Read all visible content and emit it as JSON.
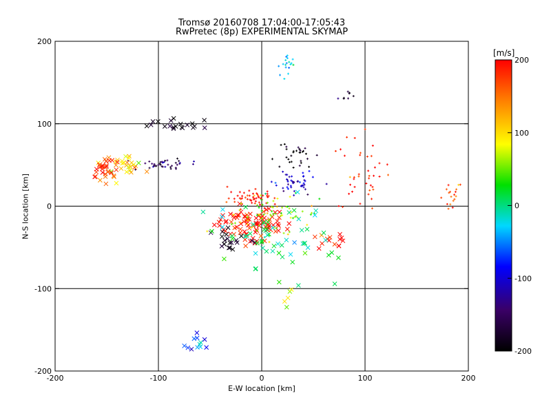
{
  "chart_data": {
    "type": "scatter",
    "title": "Tromsø 20160708 17:04:00-17:05:43",
    "subtitle": "RwPretec (8p) EXPERIMENTAL SKYMAP",
    "xlabel": "E-W location [km]",
    "ylabel": "N-S location [km]",
    "xlim": [
      -200,
      200
    ],
    "ylim": [
      -200,
      200
    ],
    "xticks": [
      "-200",
      "-100",
      "0",
      "100",
      "200"
    ],
    "yticks": [
      "-200",
      "-100",
      "0",
      "100",
      "200"
    ],
    "grid": true,
    "marker_types": [
      "x",
      "+"
    ],
    "colorbar": {
      "label": "[m/s]",
      "range": [
        -200,
        200
      ],
      "ticks": [
        "200",
        "100",
        "0",
        "-100",
        "-200"
      ],
      "colors": [
        "#000000",
        "#3a0066",
        "#0000ff",
        "#00d8ff",
        "#00e000",
        "#ffff00",
        "#ff8000",
        "#ff0000"
      ]
    },
    "clusters": [
      {
        "x": -10,
        "y": -22,
        "spread": [
          18,
          10
        ],
        "velocity": 200,
        "marker": "x",
        "count": 90
      },
      {
        "x": -8,
        "y": 10,
        "spread": [
          12,
          6
        ],
        "velocity": 195,
        "marker": "+",
        "count": 55
      },
      {
        "x": 15,
        "y": -12,
        "spread": [
          20,
          12
        ],
        "velocity": 60,
        "marker": "+",
        "count": 70
      },
      {
        "x": 30,
        "y": 30,
        "spread": [
          10,
          8
        ],
        "velocity": -110,
        "marker": "+",
        "count": 45
      },
      {
        "x": 28,
        "y": 60,
        "spread": [
          12,
          8
        ],
        "velocity": -200,
        "marker": "+",
        "count": 30
      },
      {
        "x": -95,
        "y": 52,
        "spread": [
          12,
          3
        ],
        "velocity": -150,
        "marker": "+",
        "count": 40
      },
      {
        "x": -135,
        "y": 52,
        "spread": [
          10,
          6
        ],
        "velocity": 110,
        "marker": "x",
        "count": 30
      },
      {
        "x": -155,
        "y": 45,
        "spread": [
          7,
          8
        ],
        "velocity": 175,
        "marker": "x",
        "count": 28
      },
      {
        "x": -80,
        "y": 97,
        "spread": [
          15,
          5
        ],
        "velocity": -200,
        "marker": "x",
        "count": 20
      },
      {
        "x": 100,
        "y": 40,
        "spread": [
          18,
          25
        ],
        "velocity": 190,
        "marker": "+",
        "count": 40
      },
      {
        "x": 22,
        "y": 172,
        "spread": [
          5,
          6
        ],
        "velocity": -30,
        "marker": "+",
        "count": 18
      },
      {
        "x": -60,
        "y": -160,
        "spread": [
          6,
          8
        ],
        "velocity": -70,
        "marker": "x",
        "count": 12
      },
      {
        "x": 67,
        "y": -40,
        "spread": [
          8,
          6
        ],
        "velocity": 200,
        "marker": "x",
        "count": 14
      },
      {
        "x": -30,
        "y": -45,
        "spread": [
          10,
          8
        ],
        "velocity": -200,
        "marker": "x",
        "count": 20
      },
      {
        "x": 183,
        "y": 15,
        "spread": [
          5,
          10
        ],
        "velocity": 150,
        "marker": "+",
        "count": 18
      },
      {
        "x": 80,
        "y": 135,
        "spread": [
          5,
          3
        ],
        "velocity": -185,
        "marker": "+",
        "count": 8
      },
      {
        "x": 28,
        "y": -115,
        "spread": [
          3,
          8
        ],
        "velocity": 90,
        "marker": "x",
        "count": 5
      },
      {
        "x": 10,
        "y": -40,
        "spread": [
          30,
          25
        ],
        "velocity": 0,
        "marker": "x",
        "count": 60
      }
    ]
  }
}
